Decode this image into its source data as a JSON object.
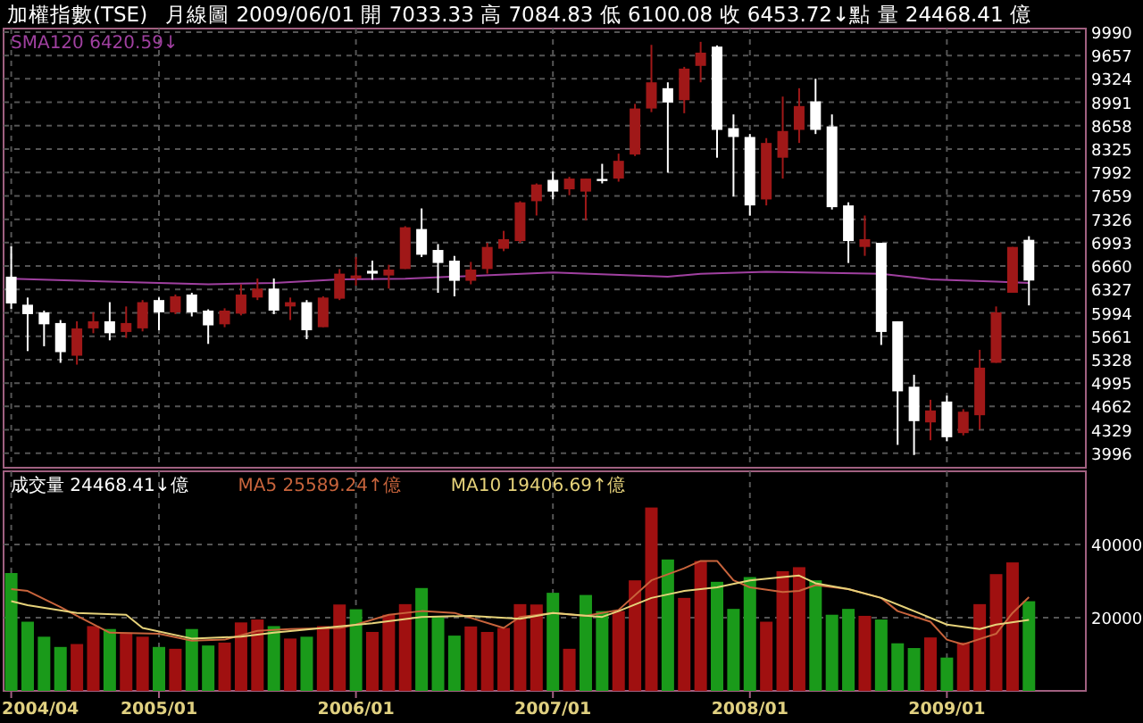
{
  "chart_data": [
    {
      "type": "candlestick",
      "title": "加權指數(TSE)",
      "subtitle": "月線圖  2009/06/01  開 7033.33  高 7084.83  低 6100.08  收 6453.72↓點  量 24468.41 億",
      "x": [
        "2004-04",
        "2004-05",
        "2004-06",
        "2004-07",
        "2004-08",
        "2004-09",
        "2004-10",
        "2004-11",
        "2004-12",
        "2005-01",
        "2005-02",
        "2005-03",
        "2005-04",
        "2005-05",
        "2005-06",
        "2005-07",
        "2005-08",
        "2005-09",
        "2005-10",
        "2005-11",
        "2005-12",
        "2006-01",
        "2006-02",
        "2006-03",
        "2006-04",
        "2006-05",
        "2006-06",
        "2006-07",
        "2006-08",
        "2006-09",
        "2006-10",
        "2006-11",
        "2006-12",
        "2007-01",
        "2007-02",
        "2007-03",
        "2007-04",
        "2007-05",
        "2007-06",
        "2007-07",
        "2007-08",
        "2007-09",
        "2007-10",
        "2007-11",
        "2007-12",
        "2008-01",
        "2008-02",
        "2008-03",
        "2008-04",
        "2008-05",
        "2008-06",
        "2008-07",
        "2008-08",
        "2008-09",
        "2008-10",
        "2008-11",
        "2008-12",
        "2009-01",
        "2009-02",
        "2009-03",
        "2009-04",
        "2009-05",
        "2009-06"
      ],
      "xticks": [
        {
          "value": "2004-04",
          "label": null
        },
        {
          "value": "2005-01",
          "label": null
        },
        {
          "value": "2006-01",
          "label": null
        },
        {
          "value": "2007-01",
          "label": null
        },
        {
          "value": "2008-01",
          "label": null
        },
        {
          "value": "2009-01",
          "label": null
        }
      ],
      "ohlc": [
        [
          6509,
          6940,
          6052,
          6128
        ],
        [
          6110,
          6212,
          5450,
          5976
        ],
        [
          6001,
          6026,
          5519,
          5831
        ],
        [
          5849,
          5892,
          5283,
          5435
        ],
        [
          5384,
          5874,
          5257,
          5773
        ],
        [
          5773,
          6001,
          5704,
          5874
        ],
        [
          5874,
          6146,
          5603,
          5704
        ],
        [
          5722,
          6085,
          5638,
          5849
        ],
        [
          5773,
          6176,
          5730,
          6146
        ],
        [
          6176,
          6212,
          5747,
          6001
        ],
        [
          6001,
          6255,
          5976,
          6229
        ],
        [
          6255,
          6280,
          5943,
          6001
        ],
        [
          6026,
          6044,
          5552,
          5816
        ],
        [
          5831,
          6059,
          5790,
          6026
        ],
        [
          5983,
          6400,
          5958,
          6255
        ],
        [
          6212,
          6483,
          6176,
          6339
        ],
        [
          6339,
          6483,
          5976,
          6026
        ],
        [
          6085,
          6212,
          5892,
          6146
        ],
        [
          6146,
          6176,
          5620,
          5747
        ],
        [
          5790,
          6229,
          5790,
          6212
        ],
        [
          6196,
          6618,
          6176,
          6552
        ],
        [
          6483,
          6788,
          6382,
          6526
        ],
        [
          6593,
          6737,
          6466,
          6552
        ],
        [
          6526,
          6678,
          6339,
          6610
        ],
        [
          6618,
          7227,
          6618,
          7212
        ],
        [
          7187,
          7480,
          6788,
          6821
        ],
        [
          6889,
          6973,
          6280,
          6704
        ],
        [
          6737,
          6805,
          6229,
          6450
        ],
        [
          6450,
          6719,
          6400,
          6610
        ],
        [
          6618,
          6991,
          6552,
          6932
        ],
        [
          6907,
          7161,
          6872,
          7042
        ],
        [
          7016,
          7583,
          6991,
          7567
        ],
        [
          7583,
          7836,
          7379,
          7821
        ],
        [
          7887,
          8006,
          7608,
          7720
        ],
        [
          7752,
          7930,
          7668,
          7905
        ],
        [
          7720,
          7905,
          7313,
          7905
        ],
        [
          7900,
          8115,
          7836,
          7870
        ],
        [
          7905,
          8260,
          7861,
          8158
        ],
        [
          8247,
          8968,
          8226,
          8902
        ],
        [
          8902,
          9808,
          8851,
          9275
        ],
        [
          9191,
          9275,
          7989,
          8988
        ],
        [
          9021,
          9495,
          8835,
          9470
        ],
        [
          9509,
          9851,
          9275,
          9697
        ],
        [
          9783,
          9800,
          8202,
          8598
        ],
        [
          8623,
          8818,
          7650,
          8497
        ],
        [
          8497,
          8539,
          7379,
          7523
        ],
        [
          7608,
          8481,
          7523,
          8412
        ],
        [
          8202,
          9072,
          7905,
          8582
        ],
        [
          8598,
          9191,
          8412,
          8937
        ],
        [
          9004,
          9326,
          8539,
          8598
        ],
        [
          8648,
          8818,
          7465,
          7498
        ],
        [
          7523,
          7567,
          6704,
          7016
        ],
        [
          6932,
          7379,
          6805,
          7042
        ],
        [
          6991,
          6991,
          5537,
          5722
        ],
        [
          5874,
          5874,
          4115,
          4877
        ],
        [
          4943,
          5113,
          3971,
          4453
        ],
        [
          4435,
          4757,
          4181,
          4605
        ],
        [
          4732,
          4816,
          4166,
          4224
        ],
        [
          4283,
          4623,
          4250,
          4587
        ],
        [
          4537,
          5468,
          4334,
          5214
        ],
        [
          5283,
          6085,
          5283,
          6001
        ],
        [
          6280,
          6932,
          6280,
          6932
        ],
        [
          7033.33,
          7084.83,
          6100.08,
          6453.72
        ]
      ],
      "colors": [
        "#ffffff",
        "#ffffff",
        "#ffffff",
        "#ffffff",
        "#a01818",
        "#a01818",
        "#ffffff",
        "#a01818",
        "#a01818",
        "#ffffff",
        "#a01818",
        "#ffffff",
        "#ffffff",
        "#a01818",
        "#a01818",
        "#a01818",
        "#ffffff",
        "#a01818",
        "#ffffff",
        "#a01818",
        "#a01818",
        "#a01818",
        "#ffffff",
        "#a01818",
        "#a01818",
        "#ffffff",
        "#ffffff",
        "#ffffff",
        "#a01818",
        "#a01818",
        "#a01818",
        "#a01818",
        "#a01818",
        "#ffffff",
        "#a01818",
        "#a01818",
        "#ffffff",
        "#a01818",
        "#a01818",
        "#a01818",
        "#ffffff",
        "#a01818",
        "#a01818",
        "#ffffff",
        "#ffffff",
        "#ffffff",
        "#a01818",
        "#a01818",
        "#a01818",
        "#ffffff",
        "#ffffff",
        "#ffffff",
        "#a01818",
        "#ffffff",
        "#ffffff",
        "#ffffff",
        "#a01818",
        "#ffffff",
        "#a01818",
        "#a01818",
        "#a01818",
        "#a01818",
        "#ffffff"
      ],
      "series": [
        {
          "name": "SMA120 6420.59↓",
          "type": "line",
          "color": "#a040a0",
          "x": [
            "2004-04",
            "2004-10",
            "2005-04",
            "2005-08",
            "2005-12",
            "2006-04",
            "2007-01",
            "2007-08",
            "2007-10",
            "2008-02",
            "2008-09",
            "2008-12",
            "2009-04",
            "2009-06"
          ],
          "values": [
            6480,
            6440,
            6400,
            6420,
            6470,
            6480,
            6570,
            6510,
            6550,
            6580,
            6550,
            6470,
            6440,
            6420
          ]
        }
      ],
      "xlim": [
        "2004-03-17",
        "2009-09-15"
      ],
      "ylim": [
        3790,
        10040
      ],
      "yticks": [
        3996,
        4329,
        4662,
        4995,
        5328,
        5661,
        5994,
        6327,
        6660,
        6993,
        7326,
        7659,
        7992,
        8325,
        8658,
        8991,
        9324,
        9657,
        9990
      ],
      "tick_labels": "y",
      "grid": true,
      "legend": "top left"
    },
    {
      "type": "bar",
      "annotations": [
        "成交量 24468.41↓億"
      ],
      "x": [
        "2004-04",
        "2004-05",
        "2004-06",
        "2004-07",
        "2004-08",
        "2004-09",
        "2004-10",
        "2004-11",
        "2004-12",
        "2005-01",
        "2005-02",
        "2005-03",
        "2005-04",
        "2005-05",
        "2005-06",
        "2005-07",
        "2005-08",
        "2005-09",
        "2005-10",
        "2005-11",
        "2005-12",
        "2006-01",
        "2006-02",
        "2006-03",
        "2006-04",
        "2006-05",
        "2006-06",
        "2006-07",
        "2006-08",
        "2006-09",
        "2006-10",
        "2006-11",
        "2006-12",
        "2007-01",
        "2007-02",
        "2007-03",
        "2007-04",
        "2007-05",
        "2007-06",
        "2007-07",
        "2007-08",
        "2007-09",
        "2007-10",
        "2007-11",
        "2007-12",
        "2008-01",
        "2008-02",
        "2008-03",
        "2008-04",
        "2008-05",
        "2008-06",
        "2008-07",
        "2008-08",
        "2008-09",
        "2008-10",
        "2008-11",
        "2008-12",
        "2009-01",
        "2009-02",
        "2009-03",
        "2009-04",
        "2009-05",
        "2009-06"
      ],
      "series": [
        {
          "type": "bar",
          "colors": [
            "#1a9a1a",
            "#1a9a1a",
            "#1a9a1a",
            "#1a9a1a",
            "#a01010",
            "#a01010",
            "#1a9a1a",
            "#a01010",
            "#a01010",
            "#1a9a1a",
            "#a01010",
            "#1a9a1a",
            "#1a9a1a",
            "#a01010",
            "#a01010",
            "#a01010",
            "#1a9a1a",
            "#a01010",
            "#1a9a1a",
            "#a01010",
            "#a01010",
            "#1a9a1a",
            "#a01010",
            "#a01010",
            "#a01010",
            "#1a9a1a",
            "#1a9a1a",
            "#1a9a1a",
            "#a01010",
            "#a01010",
            "#a01010",
            "#a01010",
            "#a01010",
            "#1a9a1a",
            "#a01010",
            "#1a9a1a",
            "#1a9a1a",
            "#a01010",
            "#a01010",
            "#a01010",
            "#1a9a1a",
            "#a01010",
            "#a01010",
            "#1a9a1a",
            "#1a9a1a",
            "#1a9a1a",
            "#a01010",
            "#a01010",
            "#a01010",
            "#1a9a1a",
            "#1a9a1a",
            "#1a9a1a",
            "#a01010",
            "#1a9a1a",
            "#1a9a1a",
            "#1a9a1a",
            "#a01010",
            "#1a9a1a",
            "#a01010",
            "#a01010",
            "#a01010",
            "#a01010",
            "#1a9a1a"
          ],
          "values": [
            32200,
            18900,
            14800,
            12000,
            12800,
            17700,
            16900,
            15900,
            14800,
            12000,
            11500,
            16900,
            12400,
            13200,
            18700,
            19500,
            17700,
            14300,
            14800,
            17700,
            23600,
            22300,
            16100,
            20800,
            23700,
            28100,
            20200,
            15100,
            17600,
            16100,
            17200,
            23700,
            23600,
            26800,
            11500,
            26200,
            21800,
            21800,
            30200,
            50100,
            35900,
            25400,
            35500,
            29800,
            22400,
            31100,
            18900,
            32700,
            33800,
            30200,
            20800,
            22400,
            20500,
            19500,
            13000,
            11700,
            14600,
            9100,
            13200,
            23700,
            31900,
            35100,
            24500
          ]
        },
        {
          "name": "MA5 25589.24↑億",
          "type": "line",
          "color": "#c8643c",
          "x": [
            "2004-04",
            "2004-05",
            "2004-07",
            "2004-08",
            "2004-10",
            "2005-01",
            "2005-03",
            "2005-05",
            "2005-07",
            "2005-09",
            "2005-12",
            "2006-01",
            "2006-03",
            "2006-05",
            "2006-07",
            "2006-10",
            "2006-11",
            "2007-01",
            "2007-03",
            "2007-05",
            "2007-07",
            "2007-09",
            "2007-10",
            "2007-11",
            "2007-12",
            "2008-01",
            "2008-03",
            "2008-04",
            "2008-05",
            "2008-07",
            "2008-09",
            "2008-10",
            "2008-12",
            "2009-01",
            "2009-02",
            "2009-04",
            "2009-05",
            "2009-06"
          ],
          "values": [
            27800,
            27300,
            22900,
            20500,
            15900,
            15600,
            13700,
            14000,
            16400,
            16900,
            17200,
            18100,
            20800,
            21800,
            21300,
            17200,
            20200,
            21300,
            20500,
            22100,
            30200,
            33500,
            35500,
            35500,
            30200,
            28300,
            27000,
            27300,
            28900,
            27800,
            25400,
            21800,
            18900,
            14000,
            12700,
            15600,
            21300,
            25600
          ]
        },
        {
          "name": "MA10 19406.69↑億",
          "type": "line",
          "color": "#e6d27a",
          "x": [
            "2004-04",
            "2004-05",
            "2004-08",
            "2004-11",
            "2004-12",
            "2005-03",
            "2005-06",
            "2005-08",
            "2005-11",
            "2006-02",
            "2006-05",
            "2006-08",
            "2006-11",
            "2007-01",
            "2007-04",
            "2007-05",
            "2007-07",
            "2007-09",
            "2007-11",
            "2008-01",
            "2008-03",
            "2008-04",
            "2008-05",
            "2008-07",
            "2008-09",
            "2008-11",
            "2009-01",
            "2009-03",
            "2009-04",
            "2009-06"
          ],
          "values": [
            24500,
            23400,
            21300,
            20800,
            17200,
            14300,
            14800,
            15900,
            17200,
            18500,
            20200,
            20500,
            19700,
            21300,
            20200,
            21800,
            25400,
            27300,
            28300,
            30200,
            31100,
            31500,
            29400,
            27800,
            25400,
            21800,
            18100,
            16900,
            18100,
            19400
          ]
        }
      ],
      "xlim": [
        "2004-03-17",
        "2009-09-15"
      ],
      "xticks": [
        {
          "value": "2004-04",
          "label": "2004/04"
        },
        {
          "value": "2005-01",
          "label": "2005/01"
        },
        {
          "value": "2006-01",
          "label": "2006/01"
        },
        {
          "value": "2007-01",
          "label": "2007/01"
        },
        {
          "value": "2008-01",
          "label": "2008/01"
        },
        {
          "value": "2009-01",
          "label": "2009/01"
        }
      ],
      "ylim": [
        0,
        60000
      ],
      "yticks": [
        20000,
        40000
      ],
      "grid": true,
      "legend": "top left"
    }
  ]
}
